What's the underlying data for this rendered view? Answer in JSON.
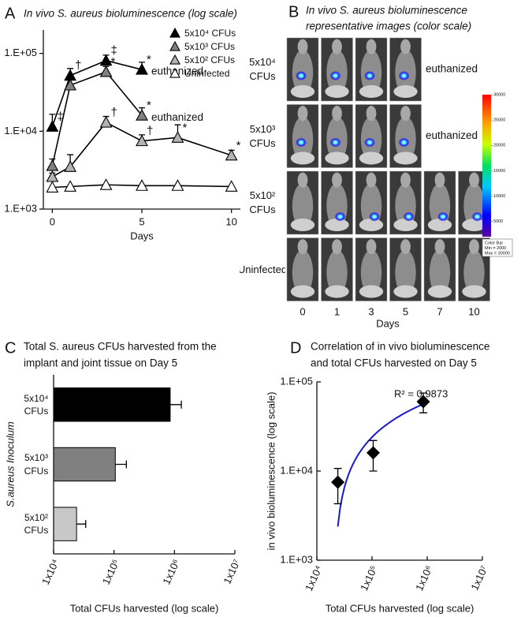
{
  "chart_data": [
    {
      "type": "line",
      "panel": "A",
      "title": "In vivo S. aureus bioluminescence (log scale)",
      "x_label": "Days",
      "x": [
        0,
        1,
        3,
        5,
        7,
        10
      ],
      "xlim": [
        -0.5,
        10.5
      ],
      "xticks": [
        0,
        5,
        10
      ],
      "y_scale": "log",
      "ylim": [
        1000,
        200000
      ],
      "yticks": [
        {
          "value": 1000,
          "label": "1.E+03"
        },
        {
          "value": 10000,
          "label": "1.E+04"
        },
        {
          "value": 100000,
          "label": "1.E+05"
        }
      ],
      "legend": "upper right",
      "series": [
        {
          "name": "5x10⁴ CFUs",
          "color": "#000000",
          "values": [
            11500,
            52000,
            81000,
            62000,
            null,
            null
          ],
          "errors": [
            5000,
            12000,
            14000,
            15000,
            null,
            null
          ],
          "marks": [
            "‡",
            "†",
            "‡",
            "*",
            null,
            null
          ],
          "end_label": "euthanized"
        },
        {
          "name": "5x10³ CFUs",
          "color": "#808080",
          "values": [
            3600,
            39000,
            58000,
            16000,
            null,
            null
          ],
          "errors": [
            800,
            9000,
            10000,
            4000,
            null,
            null
          ],
          "marks": [
            null,
            null,
            "*",
            "*",
            null,
            null
          ],
          "end_label": "euthanized"
        },
        {
          "name": "5x10² CFUs",
          "color": "#b3b3b3",
          "values": [
            2600,
            3500,
            13000,
            7500,
            8300,
            4900
          ],
          "errors": [
            300,
            1500,
            2500,
            1500,
            3800,
            800
          ],
          "marks": [
            null,
            null,
            "†",
            "†",
            "*",
            "*"
          ]
        },
        {
          "name": "Uninfected",
          "color": "#ffffff",
          "values": [
            1900,
            1950,
            2050,
            2000,
            2000,
            1950
          ]
        }
      ]
    },
    {
      "type": "image_grid",
      "panel": "B",
      "title": [
        "In vivo S. aureus bioluminescence",
        "representative images (color scale)"
      ],
      "columns": [
        "0",
        "1",
        "3",
        "5",
        "7",
        "10"
      ],
      "x_label": "Days",
      "rows": [
        {
          "label": "5x10⁴ CFUs",
          "images": 4,
          "note": "euthanized"
        },
        {
          "label": "5x10³ CFUs",
          "images": 4,
          "note": "euthanized"
        },
        {
          "label": "5x10² CFUs",
          "images": 6
        },
        {
          "label": "Uninfected",
          "images": 6
        }
      ],
      "colorbar": {
        "lim": [
          2000,
          30000
        ],
        "ticks": [
          5000,
          10000,
          15000,
          20000,
          25000,
          30000
        ],
        "caption": [
          "Color Bar",
          "Min = 2000",
          "Max = 30000"
        ]
      }
    },
    {
      "type": "bar",
      "orientation": "horizontal",
      "panel": "C",
      "title": [
        "Total S. aureus CFUs harvested from the",
        "implant and joint tissue on Day 5"
      ],
      "categories": [
        "5x10⁴ CFUs",
        "5x10³ CFUs",
        "5x10² CFUs"
      ],
      "values": [
        850000,
        105000,
        24000
      ],
      "errors": [
        450000,
        55000,
        10000
      ],
      "colors": [
        "#000000",
        "#808080",
        "#c8c8c8"
      ],
      "x_scale": "log",
      "xlim": [
        10000,
        10000000
      ],
      "xticks": [
        {
          "value": 10000,
          "label": "1x10⁴"
        },
        {
          "value": 100000,
          "label": "1x10⁵"
        },
        {
          "value": 1000000,
          "label": "1x10⁶"
        },
        {
          "value": 10000000,
          "label": "1x10⁷"
        }
      ],
      "x_label": "Total CFUs harvested (log scale)",
      "y_label": "S.aureus Inoculum"
    },
    {
      "type": "scatter",
      "panel": "D",
      "title": [
        "Correlation of in vivo bioluminescence",
        "and total CFUs harvested on Day 5"
      ],
      "x": [
        24000,
        105000,
        850000
      ],
      "values": [
        7500,
        16000,
        60000
      ],
      "errors": [
        3200,
        6000,
        15000
      ],
      "color": "#000000",
      "fit_color": "#1a1acc",
      "annotation": "R² = 0.9873",
      "x_scale": "log",
      "xlim": [
        10000,
        10000000
      ],
      "xticks": [
        {
          "value": 10000,
          "label": "1x10⁴"
        },
        {
          "value": 100000,
          "label": "1x10⁵"
        },
        {
          "value": 1000000,
          "label": "1x10⁶"
        },
        {
          "value": 10000000,
          "label": "1x10⁷"
        }
      ],
      "y_scale": "log",
      "ylim": [
        1000,
        100000
      ],
      "yticks": [
        {
          "value": 1000,
          "label": "1.E+03"
        },
        {
          "value": 10000,
          "label": "1.E+04"
        },
        {
          "value": 100000,
          "label": "1.E+05"
        }
      ],
      "x_label": "Total CFUs harvested (log scale)",
      "y_label": "in vivo bioluminescence (log scale)"
    }
  ]
}
